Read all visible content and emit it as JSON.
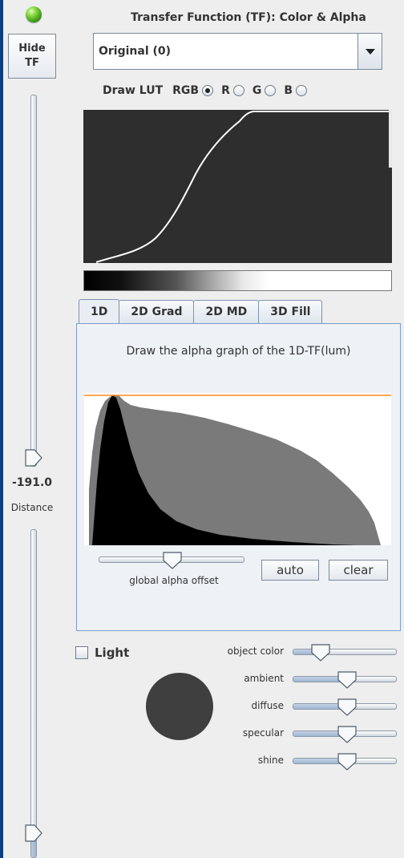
{
  "left_panel": {
    "hide_tf_label": [
      "Hide",
      "TF"
    ],
    "distance_value": "-191.0",
    "distance_label": "Distance"
  },
  "header": {
    "title": "Transfer Function (TF): Color & Alpha",
    "preset_selected": "Original (0)"
  },
  "lut": {
    "label": "Draw LUT",
    "options": [
      "RGB",
      "R",
      "G",
      "B"
    ],
    "selected": "RGB"
  },
  "tabs": [
    "1D",
    "2D Grad",
    "2D MD",
    "3D Fill"
  ],
  "active_tab": "1D",
  "panel": {
    "header": "Draw the alpha graph of the 1D-TF(lum)",
    "global_alpha_offset_label": "global alpha offset",
    "auto_label": "auto",
    "clear_label": "clear"
  },
  "lighting": {
    "light_label": "Light",
    "light_checked": false,
    "material_sliders": [
      {
        "label": "object color",
        "level": 0.27
      },
      {
        "label": "ambient",
        "level": 0.52
      },
      {
        "label": "diffuse",
        "level": 0.52
      },
      {
        "label": "specular",
        "level": 0.52
      },
      {
        "label": "shine",
        "level": 0.52
      }
    ]
  },
  "colors": {
    "accent_orange": "#ff8c1a",
    "histogram_gray": "#7a7a7a",
    "histogram_black": "#000000",
    "lut_background": "#2e2e2e"
  }
}
